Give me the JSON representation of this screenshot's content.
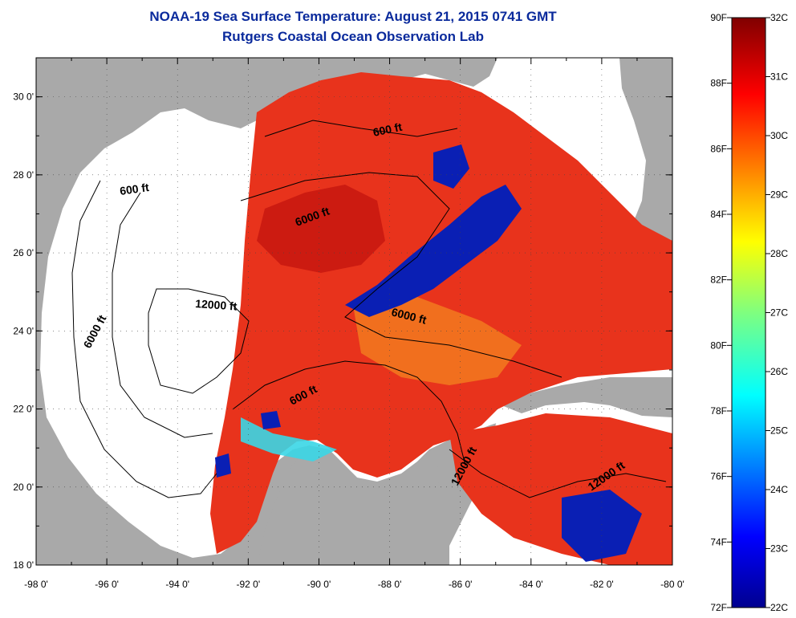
{
  "title": {
    "line1": "NOAA-19 Sea Surface Temperature:  August 21, 2015 0741 GMT",
    "line2": "Rutgers Coastal Ocean Observation Lab"
  },
  "map": {
    "lon_range": [
      -98,
      -80
    ],
    "lat_range": [
      18,
      31
    ],
    "x_ticks": [
      {
        "lon": -98,
        "label": "-98 0'"
      },
      {
        "lon": -96,
        "label": "-96 0'"
      },
      {
        "lon": -94,
        "label": "-94 0'"
      },
      {
        "lon": -92,
        "label": "-92 0'"
      },
      {
        "lon": -90,
        "label": "-90 0'"
      },
      {
        "lon": -88,
        "label": "-88 0'"
      },
      {
        "lon": -86,
        "label": "-86 0'"
      },
      {
        "lon": -84,
        "label": "-84 0'"
      },
      {
        "lon": -82,
        "label": "-82 0'"
      },
      {
        "lon": -80,
        "label": "-80 0'"
      }
    ],
    "y_ticks": [
      {
        "lat": 18,
        "label": "18 0'"
      },
      {
        "lat": 20,
        "label": "20 0'"
      },
      {
        "lat": 22,
        "label": "22 0'"
      },
      {
        "lat": 24,
        "label": "24 0'"
      },
      {
        "lat": 26,
        "label": "26 0'"
      },
      {
        "lat": 28,
        "label": "28 0'"
      },
      {
        "lat": 30,
        "label": "30 0'"
      }
    ],
    "contour_labels": [
      "600 ft",
      "600 ft",
      "6000 ft",
      "12000 ft",
      "6000 ft",
      "6000 ft",
      "600 ft",
      "12000 ft",
      "12000 ft"
    ],
    "colors": {
      "land": "#a9a9a9",
      "no_data": "#ffffff",
      "warm": "#e8301a",
      "cool": "#0a1fb4"
    }
  },
  "colorbar": {
    "fahrenheit": [
      "90F",
      "88F",
      "86F",
      "84F",
      "82F",
      "80F",
      "78F",
      "76F",
      "74F",
      "72F"
    ],
    "celsius": [
      "32C",
      "31C",
      "30C",
      "29C",
      "28C",
      "27C",
      "26C",
      "25C",
      "24C",
      "23C",
      "22C"
    ],
    "range_c": [
      22,
      32
    ],
    "range_f": [
      72,
      90
    ]
  }
}
